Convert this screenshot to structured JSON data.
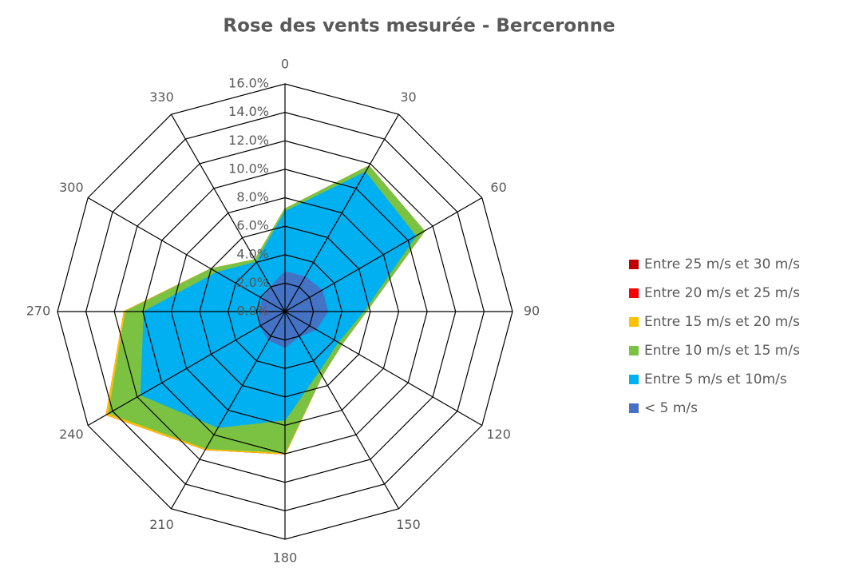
{
  "chart_data": {
    "type": "radar",
    "title": "Rose des vents mesurée - Berceronne",
    "categories": [
      "0",
      "30",
      "60",
      "90",
      "120",
      "150",
      "180",
      "210",
      "240",
      "270",
      "300",
      "330"
    ],
    "stacked": true,
    "series": [
      {
        "name": "< 5 m/s",
        "color": "#4472c4",
        "values": [
          2.8,
          2.8,
          3.0,
          3.0,
          2.5,
          2.0,
          2.5,
          2.3,
          2.0,
          1.8,
          1.8,
          2.0
        ]
      },
      {
        "name": "Entre 5 m/s et 10m/s",
        "color": "#00b0f0",
        "values": [
          4.2,
          8.5,
          7.6,
          2.5,
          1.8,
          2.8,
          5.1,
          7.1,
          9.7,
          8.1,
          3.7,
          2.0
        ]
      },
      {
        "name": "Entre 10 m/s et 15 m/s",
        "color": "#7cc242",
        "values": [
          0.2,
          0.5,
          0.7,
          0.2,
          0.3,
          0.4,
          2.3,
          1.7,
          2.6,
          1.3,
          0.5,
          0.2
        ]
      },
      {
        "name": "Entre 15 m/s et 20 m/s",
        "color": "#ffc000",
        "values": [
          0,
          0,
          0,
          0,
          0,
          0,
          0.1,
          0.1,
          0.2,
          0.1,
          0,
          0
        ]
      },
      {
        "name": "Entre 20 m/s et 25 m/s",
        "color": "#ff0000",
        "values": [
          0,
          0,
          0,
          0,
          0,
          0,
          0,
          0,
          0,
          0,
          0,
          0
        ]
      },
      {
        "name": "Entre 25 m/s et 30 m/s",
        "color": "#c00000",
        "values": [
          0,
          0,
          0,
          0,
          0,
          0,
          0,
          0,
          0,
          0,
          0,
          0
        ]
      }
    ],
    "ylim": [
      0,
      16
    ],
    "yticks": [
      {
        "value": 0,
        "label": "0.0%"
      },
      {
        "value": 2,
        "label": "2.0%"
      },
      {
        "value": 4,
        "label": "4.0%"
      },
      {
        "value": 6,
        "label": "6.0%"
      },
      {
        "value": 8,
        "label": "8.0%"
      },
      {
        "value": 10,
        "label": "10.0%"
      },
      {
        "value": 12,
        "label": "12.0%"
      },
      {
        "value": 14,
        "label": "14.0%"
      },
      {
        "value": 16,
        "label": "16.0%"
      }
    ],
    "grid": true,
    "legend": "right"
  }
}
